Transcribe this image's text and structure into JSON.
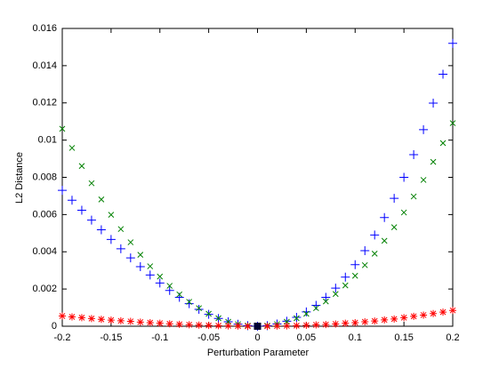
{
  "chart_data": {
    "type": "scatter",
    "xlabel": "Perturbation Parameter",
    "ylabel": "L2 Distance",
    "x": [
      -0.2,
      -0.19,
      -0.18,
      -0.17,
      -0.16,
      -0.15,
      -0.14,
      -0.13,
      -0.12,
      -0.11,
      -0.1,
      -0.09,
      -0.08,
      -0.07,
      -0.06,
      -0.05,
      -0.04,
      -0.03,
      -0.02,
      -0.01,
      0,
      0.01,
      0.02,
      0.03,
      0.04,
      0.05,
      0.06,
      0.07,
      0.08,
      0.09,
      0.1,
      0.11,
      0.12,
      0.13,
      0.14,
      0.15,
      0.16,
      0.17,
      0.18,
      0.19,
      0.2
    ],
    "series": [
      {
        "color": "#0000ff",
        "marker": "+",
        "values": [
          0.0073,
          0.00677,
          0.00623,
          0.0057,
          0.00518,
          0.00466,
          0.00416,
          0.00367,
          0.0032,
          0.00275,
          0.00232,
          0.00192,
          0.00155,
          0.00121,
          0.00091,
          0.00064,
          0.00042,
          0.00024,
          0.00011,
          3e-05,
          0,
          3e-05,
          0.00012,
          0.00027,
          0.00048,
          0.00077,
          0.00112,
          0.00155,
          0.00205,
          0.00264,
          0.00331,
          0.00406,
          0.0049,
          0.00584,
          0.00687,
          0.008,
          0.00922,
          0.01056,
          0.01199,
          0.01354,
          0.0152
        ]
      },
      {
        "color": "#008000",
        "marker": "x",
        "values": [
          0.01061,
          0.00958,
          0.00861,
          0.00768,
          0.00681,
          0.00599,
          0.00522,
          0.00451,
          0.00384,
          0.00322,
          0.00267,
          0.00217,
          0.00171,
          0.00131,
          0.00097,
          0.00067,
          0.00043,
          0.00024,
          0.00011,
          3e-05,
          0,
          3e-05,
          0.00011,
          0.00024,
          0.00043,
          0.00067,
          0.00097,
          0.00133,
          0.00173,
          0.00219,
          0.00271,
          0.00328,
          0.0039,
          0.00459,
          0.00532,
          0.00611,
          0.00697,
          0.00786,
          0.00883,
          0.00984,
          0.01091
        ]
      },
      {
        "color": "#ff0000",
        "marker": "*",
        "values": [
          0.00055,
          0.0005,
          0.00046,
          0.00041,
          0.00037,
          0.00033,
          0.00029,
          0.00026,
          0.00022,
          0.00019,
          0.00016,
          0.00013,
          0.0001,
          8e-05,
          6e-05,
          4e-05,
          3e-05,
          2e-05,
          1e-05,
          0,
          0,
          0,
          1e-05,
          2e-05,
          3e-05,
          5e-05,
          7e-05,
          9e-05,
          0.00012,
          0.00016,
          0.00019,
          0.00024,
          0.00028,
          0.00034,
          0.00039,
          0.00046,
          0.00053,
          0.0006,
          0.00068,
          0.00076,
          0.00085
        ]
      },
      {
        "color": "#000033",
        "marker": "s",
        "x": [
          0
        ],
        "values": [
          0
        ]
      }
    ],
    "xlim": [
      -0.2,
      0.2
    ],
    "xticks": [
      -0.2,
      -0.15,
      -0.1,
      -0.05,
      0,
      0.05,
      0.1,
      0.15,
      0.2
    ],
    "ylim": [
      0,
      0.016
    ],
    "yticks": [
      0,
      0.002,
      0.004,
      0.006,
      0.008,
      0.01,
      0.012,
      0.014,
      0.016
    ]
  }
}
